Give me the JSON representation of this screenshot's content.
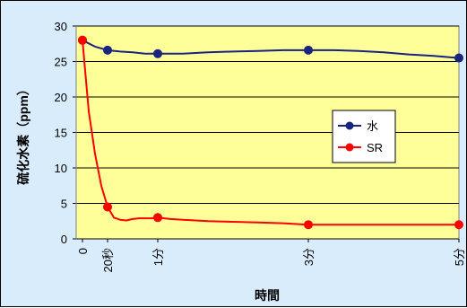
{
  "chart_data": {
    "type": "line",
    "xlabel": "時間",
    "ylabel": "硫化水素（ppm）",
    "ylim": [
      0,
      30
    ],
    "yticks": [
      0,
      5,
      10,
      15,
      20,
      25,
      30
    ],
    "xlim_seconds": [
      -5,
      300
    ],
    "xticks": [
      {
        "x": 0,
        "label": "0"
      },
      {
        "x": 20,
        "label": "20秒"
      },
      {
        "x": 60,
        "label": "1分"
      },
      {
        "x": 180,
        "label": "3分"
      },
      {
        "x": 300,
        "label": "5分"
      }
    ],
    "grid": true,
    "legend_position": "right",
    "series": [
      {
        "name": "水",
        "color": "#1a237e",
        "x": [
          0,
          20,
          60,
          180,
          300
        ],
        "y": [
          28.0,
          26.6,
          26.1,
          26.6,
          25.5
        ],
        "curve_x": [
          0,
          10,
          20,
          30,
          40,
          50,
          60,
          80,
          100,
          120,
          140,
          160,
          180,
          200,
          220,
          240,
          260,
          280,
          300
        ],
        "curve_y": [
          28.0,
          27.1,
          26.6,
          26.4,
          26.3,
          26.1,
          26.1,
          26.1,
          26.3,
          26.4,
          26.5,
          26.6,
          26.6,
          26.6,
          26.5,
          26.3,
          26.0,
          25.8,
          25.5
        ]
      },
      {
        "name": "SR",
        "color": "#ff0000",
        "x": [
          0,
          20,
          60,
          180,
          300
        ],
        "y": [
          28.0,
          4.5,
          3.0,
          2.0,
          2.0
        ],
        "curve_x": [
          0,
          5,
          10,
          15,
          20,
          25,
          30,
          35,
          40,
          45,
          50,
          55,
          60,
          70,
          80,
          100,
          120,
          140,
          160,
          180,
          200,
          240,
          280,
          300
        ],
        "curve_y": [
          28.0,
          18.0,
          12.0,
          7.5,
          4.5,
          3.0,
          2.7,
          2.6,
          2.8,
          2.9,
          2.9,
          2.9,
          3.0,
          2.8,
          2.7,
          2.5,
          2.4,
          2.3,
          2.2,
          2.0,
          2.0,
          2.0,
          2.0,
          2.0
        ]
      }
    ]
  },
  "style": {
    "plot_background": "#ffff99",
    "outer_background": "#d9ecfb",
    "gridline_color": "#000000"
  }
}
